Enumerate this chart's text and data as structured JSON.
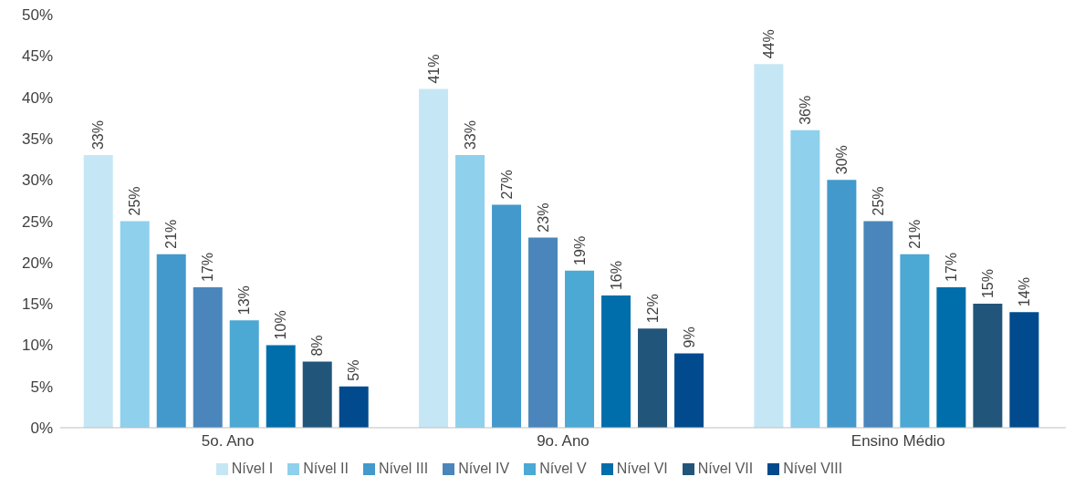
{
  "chart_data": {
    "type": "bar",
    "categories": [
      "5o. Ano",
      "9o. Ano",
      "Ensino Médio"
    ],
    "series": [
      {
        "name": "Nível I",
        "color": "#c5e7f5",
        "values": [
          33,
          41,
          44
        ],
        "value_labels": [
          "33%",
          "41%",
          "44%"
        ]
      },
      {
        "name": "Nível II",
        "color": "#8fd0ec",
        "values": [
          25,
          33,
          36
        ],
        "value_labels": [
          "25%",
          "33%",
          "36%"
        ]
      },
      {
        "name": "Nível III",
        "color": "#4399cc",
        "values": [
          21,
          27,
          30
        ],
        "value_labels": [
          "21%",
          "27%",
          "30%"
        ]
      },
      {
        "name": "Nível IV",
        "color": "#4a86bb",
        "values": [
          17,
          23,
          25
        ],
        "value_labels": [
          "17%",
          "23%",
          "25%"
        ]
      },
      {
        "name": "Nível V",
        "color": "#4ba9d4",
        "values": [
          13,
          19,
          21
        ],
        "value_labels": [
          "13%",
          "19%",
          "21%"
        ]
      },
      {
        "name": "Nível VI",
        "color": "#006eaa",
        "values": [
          10,
          16,
          17
        ],
        "value_labels": [
          "10%",
          "16%",
          "17%"
        ]
      },
      {
        "name": "Nível VII",
        "color": "#22557a",
        "values": [
          8,
          12,
          15
        ],
        "value_labels": [
          "8%",
          "12%",
          "15%"
        ]
      },
      {
        "name": "Nível VIII",
        "color": "#004a8d",
        "values": [
          5,
          9,
          14
        ],
        "value_labels": [
          "5%",
          "9%",
          "14%"
        ]
      }
    ],
    "ylim": [
      0,
      50
    ],
    "yticks": [
      {
        "value": 0,
        "label": "0%"
      },
      {
        "value": 5,
        "label": "5%"
      },
      {
        "value": 10,
        "label": "10%"
      },
      {
        "value": 15,
        "label": "15%"
      },
      {
        "value": 20,
        "label": "20%"
      },
      {
        "value": 25,
        "label": "25%"
      },
      {
        "value": 30,
        "label": "30%"
      },
      {
        "value": 35,
        "label": "35%"
      },
      {
        "value": 40,
        "label": "40%"
      },
      {
        "value": 45,
        "label": "45%"
      },
      {
        "value": 50,
        "label": "50%"
      }
    ],
    "grid": false,
    "legend": "bottom"
  }
}
